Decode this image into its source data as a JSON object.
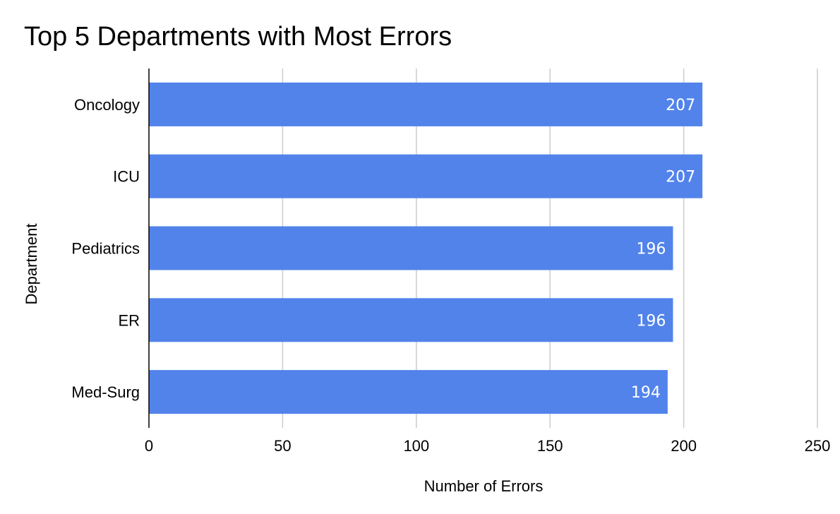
{
  "chart_data": {
    "type": "bar",
    "orientation": "horizontal",
    "title": "Top 5 Departments with Most Errors",
    "xlabel": "Number of Errors",
    "ylabel": "Department",
    "categories": [
      "Oncology",
      "ICU",
      "Pediatrics",
      "ER",
      "Med-Surg"
    ],
    "values": [
      207,
      207,
      196,
      196,
      194
    ],
    "xlim": [
      0,
      250
    ],
    "xticks": [
      "0",
      "50",
      "100",
      "150",
      "200",
      "250"
    ],
    "grid": true,
    "legend": "none",
    "colors": {
      "bar": "#5283EB",
      "grid": "#cccccc",
      "axis": "#000000",
      "label_text": "#ffffff"
    }
  }
}
